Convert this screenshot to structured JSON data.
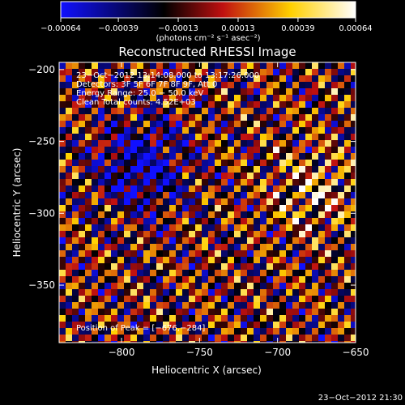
{
  "chart_data": {
    "type": "heatmap",
    "title": "Reconstructed RHESSI Image",
    "xlabel": "Heliocentric X (arcsec)",
    "ylabel": "Heliocentric Y (arcsec)",
    "xlim": [
      -840,
      -650
    ],
    "ylim": [
      -390,
      -195
    ],
    "x_ticks": [
      -800,
      -750,
      -700,
      -650
    ],
    "x_tick_labels": [
      "−800",
      "−750",
      "−700",
      "−650"
    ],
    "y_ticks": [
      -200,
      -250,
      -300,
      -350
    ],
    "y_tick_labels": [
      "−200",
      "−250",
      "−300",
      "−350"
    ],
    "colorbar": {
      "min": -0.00064,
      "max": 0.00064,
      "ticks": [
        -0.00064,
        -0.00039,
        -0.00013,
        0.00013,
        0.00039,
        0.00064
      ],
      "tick_labels": [
        "−0.00064",
        "−0.00039",
        "−0.00013",
        "0.00013",
        "0.00039",
        "0.00064"
      ],
      "unit_label": "(photons cm⁻² s⁻¹ asec⁻²)",
      "colors": [
        "#1010ff",
        "#000000",
        "#c01010",
        "#ffd000",
        "#ffffff"
      ]
    },
    "annotations": [
      "23−Oct−2012 13:14:08.000 to 13:17:26.000",
      "Detectors: 3F 5F 6F 7F 8F 9F, Att 0",
      "Energy Range: 25.0 − 50.0 keV",
      "Clean     Total counts: 4.52E+03"
    ],
    "peak_label": "Position of Peak = [−676,−284]",
    "peak": [
      -676,
      -284
    ],
    "grid": false
  },
  "footer": {
    "timestamp": "23−Oct−2012 21:30"
  }
}
